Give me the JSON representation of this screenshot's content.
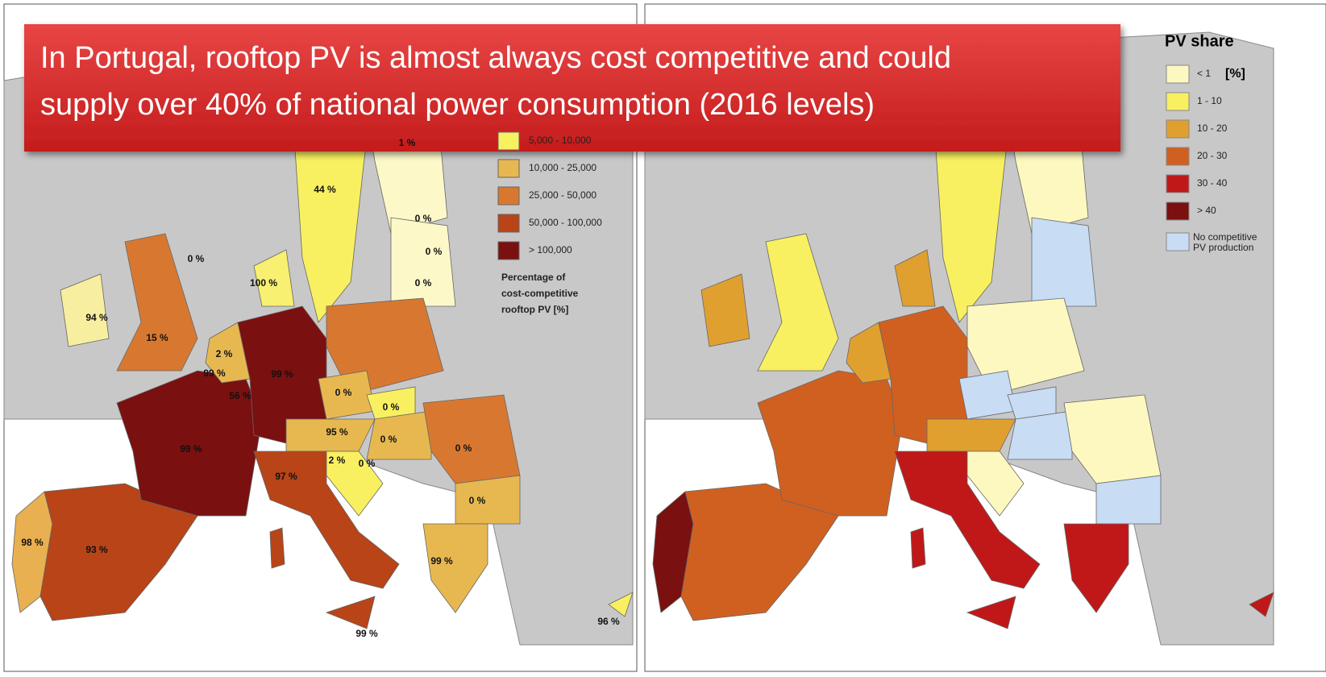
{
  "banner": {
    "lines": [
      "In Portugal, rooftop PV is almost always cost competitive and could",
      "supply over 40% of national power consumption (2016 levels)"
    ]
  },
  "left_map": {
    "legend": {
      "items": [
        "5,000 -  10,000",
        "10,000 -  25,000",
        "25,000 -  50,000",
        "50,000 - 100,000",
        "> 100,000"
      ],
      "note": [
        "Percentage of",
        "cost-competitive",
        "rooftop PV  [%]"
      ]
    },
    "labels": [
      "1 %",
      "44 %",
      "0 %",
      "0 %",
      "0 %",
      "100 %",
      "94 %",
      "15 %",
      "2 %",
      "99 %",
      "99 %",
      "56 %",
      "0 %",
      "0 %",
      "0 %",
      "95 %",
      "0 %",
      "0 %",
      "2 %",
      "0 %",
      "99 %",
      "97 %",
      "0 %",
      "99 %",
      "93 %",
      "98 %",
      "96 %",
      "99 %"
    ]
  },
  "right_map": {
    "legend": {
      "title": "PV share",
      "unit": "[%]",
      "items": [
        "< 1",
        "1 - 10",
        "10 - 20",
        "20 - 30",
        "30 - 40",
        "> 40"
      ],
      "note": [
        "No competitive",
        "PV production"
      ]
    }
  }
}
